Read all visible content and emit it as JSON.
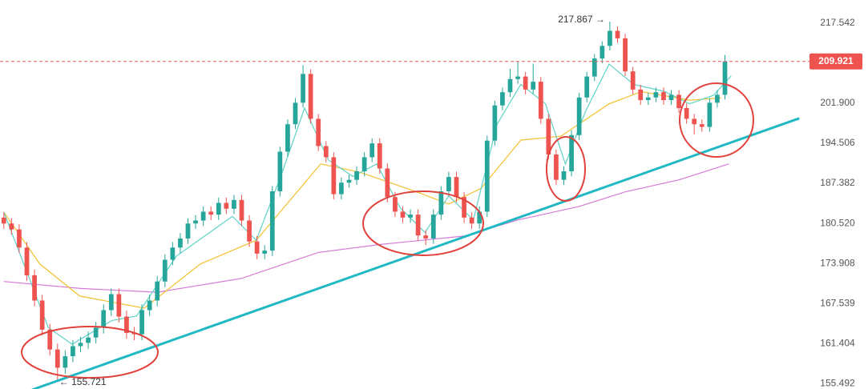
{
  "chart_data": {
    "type": "candlestick",
    "log_scale": true,
    "xlim": [
      -0.5,
      104.5
    ],
    "ylim": [
      154.7,
      222.3
    ],
    "yticks": [
      217.542,
      {
        "value": 201.9,
        "label": "201.900"
      },
      194.506,
      187.382,
      {
        "value": 180.52,
        "label": "180.520"
      },
      173.908,
      167.539,
      161.404,
      155.492
    ],
    "up_color": "#26a69a",
    "down_color": "#ef5350",
    "candles": {
      "open": [
        181.5,
        180.5,
        179.5,
        176.5,
        172,
        168,
        163.5,
        160.5,
        157.8,
        159.5,
        161,
        161.5,
        162.3,
        163.8,
        166.5,
        169,
        165.5,
        163,
        162.8,
        166.5,
        168,
        171,
        174.5,
        176.5,
        178,
        180.5,
        181,
        182.5,
        182,
        184,
        183,
        184.5,
        181,
        177.5,
        175.5,
        176,
        186,
        193,
        198,
        202,
        207.5,
        199,
        194,
        192,
        185.5,
        187.5,
        188,
        189.5,
        192,
        194.5,
        190,
        185,
        182.5,
        181.5,
        182,
        178.5,
        178,
        182,
        186,
        188.5,
        185,
        181.5,
        180.5,
        182.5,
        195,
        201.5,
        204,
        206.5,
        207,
        204.5,
        206,
        199,
        192.5,
        188,
        189.5,
        196,
        203,
        207,
        210.5,
        213,
        216,
        214.5,
        208,
        204.5,
        202.5,
        203,
        204,
        202.5,
        203.5,
        201,
        199,
        198,
        197.5,
        202,
        203.5
      ],
      "high": [
        182.4,
        181.4,
        180.4,
        177.4,
        172.9,
        168.9,
        164.4,
        161.4,
        160.4,
        161.9,
        162.4,
        163.2,
        164.7,
        167.4,
        169.9,
        169.9,
        166.4,
        163.9,
        167.4,
        168.9,
        171.9,
        175.4,
        177.4,
        178.9,
        181.4,
        181.9,
        183.4,
        183.4,
        184.9,
        184.9,
        185.4,
        185.4,
        181.9,
        178.4,
        176.9,
        186.9,
        193.9,
        198.9,
        202.9,
        209.2,
        208.4,
        199.9,
        194.9,
        192.9,
        188.4,
        188.9,
        190.4,
        192.9,
        195.4,
        195.4,
        190.9,
        185.9,
        183.4,
        182.9,
        182.9,
        179.4,
        182.9,
        186.9,
        189.4,
        189.4,
        185.9,
        182.4,
        183.4,
        195.9,
        202.4,
        204.9,
        208.5,
        210,
        207.9,
        209.5,
        206.9,
        199.9,
        193.4,
        190.4,
        196.9,
        203.9,
        207.9,
        211.4,
        213.9,
        217.867,
        216.9,
        215.4,
        208.9,
        205.4,
        203.9,
        204.9,
        204.9,
        204.4,
        204.4,
        201.9,
        199.9,
        198.9,
        202.9,
        204.4,
        211.2
      ],
      "low": [
        179.6,
        178.6,
        175.6,
        171.1,
        167.1,
        162.6,
        159.6,
        155.721,
        156.9,
        158.6,
        160.1,
        160.6,
        161.4,
        162.9,
        165.6,
        164.6,
        162.1,
        161.9,
        161.9,
        165.6,
        167.1,
        170.1,
        173.6,
        175.6,
        177.1,
        179.6,
        180.1,
        181.1,
        181.1,
        182.1,
        182.1,
        180.1,
        176.6,
        174.6,
        174.6,
        175.1,
        185.1,
        192.1,
        197.1,
        201.1,
        198.1,
        193.1,
        191.1,
        184.6,
        184.6,
        186.6,
        187.1,
        188.6,
        191.1,
        189.1,
        184.1,
        181.6,
        180.6,
        180.6,
        177.6,
        176.9,
        177.1,
        181.1,
        185.1,
        184.1,
        180.6,
        179.6,
        179.6,
        181.6,
        194.1,
        200.6,
        203.1,
        205.6,
        203.6,
        203.6,
        198.1,
        191.6,
        187.1,
        187.1,
        188.6,
        195.1,
        202.1,
        206.1,
        209.6,
        212.1,
        213.6,
        207.1,
        203.6,
        201.6,
        201.6,
        202.1,
        201.6,
        201.6,
        200.1,
        198.1,
        196.1,
        196.6,
        196.6,
        201.1,
        202.6
      ],
      "close": [
        180.5,
        179.5,
        176.5,
        172,
        168,
        163.5,
        160.5,
        157.8,
        159.5,
        161,
        161.5,
        162.3,
        163.8,
        166.5,
        169,
        165.5,
        163,
        162.8,
        166.5,
        168,
        171,
        174.5,
        176.5,
        178,
        180.5,
        181,
        182.5,
        182,
        184,
        183,
        184.5,
        181,
        177.5,
        175.5,
        176,
        186,
        193,
        198,
        202,
        207.5,
        199,
        194,
        192,
        185.5,
        187.5,
        188,
        189.5,
        192,
        194.5,
        190,
        185,
        182.5,
        181.5,
        182,
        178.5,
        178,
        182,
        186,
        188.5,
        185,
        181.5,
        180.5,
        182.5,
        195,
        201.5,
        204,
        206.5,
        207,
        204.5,
        206,
        199,
        192.5,
        188,
        189.5,
        196,
        203,
        207,
        210.5,
        213,
        216,
        214.5,
        208,
        204.5,
        202.5,
        203,
        204,
        202.5,
        203.5,
        201,
        199,
        198,
        197.5,
        202,
        203.5,
        209.921
      ]
    },
    "lines": [
      {
        "color": "#d67ad8",
        "x": [
          0,
          10,
          20,
          31,
          41,
          49,
          60,
          67,
          75,
          81,
          88,
          94.5
        ],
        "values": [
          171.0,
          169.9,
          169.3,
          171.5,
          175.7,
          177.0,
          178.4,
          181.1,
          183.4,
          185.9,
          188.0,
          190.8
        ]
      },
      {
        "color": "#f2c12e",
        "x": [
          0,
          4.7,
          9.9,
          18.3,
          25.6,
          32.9,
          41.3,
          46.5,
          53.8,
          58,
          62.2,
          67.4,
          72.6,
          78.9,
          83.1,
          89.4,
          93.5
        ],
        "values": [
          182.4,
          173.8,
          168.7,
          166.8,
          173.8,
          177.7,
          190.8,
          189.3,
          185.9,
          183.8,
          186.5,
          195.1,
          195.8,
          201.8,
          204.1,
          202.5,
          202.9
        ]
      },
      {
        "color": "#5fd3c6",
        "x": [
          0,
          2.6,
          5.8,
          8.9,
          14.1,
          17.3,
          22.5,
          29.8,
          32.9,
          36.1,
          39.2,
          42.3,
          45.5,
          48.6,
          51.7,
          54.9,
          58,
          61.2,
          64.3,
          67.4,
          70.6,
          73.2,
          75.8,
          78.9,
          82.1,
          86.2,
          89.4,
          92.5,
          94.8
        ],
        "values": [
          182.4,
          173.8,
          163.8,
          161.3,
          164.9,
          165.6,
          175.1,
          181.7,
          177.7,
          188.6,
          201.0,
          191.5,
          188.6,
          190.8,
          183.1,
          179.0,
          185.2,
          181.1,
          198.0,
          205.5,
          201.8,
          190.8,
          200.3,
          209.4,
          205.5,
          204.1,
          201.8,
          203.4,
          207.1
        ]
      }
    ],
    "trend_line": {
      "color": "#1fb8c3",
      "x": [
        3.7,
        103.7
      ],
      "values": [
        154.6,
        199.1
      ]
    },
    "last_price": 209.921,
    "last_price_color": "#ef5350",
    "high_label": {
      "value": 217.867,
      "label": "217.867 →"
    },
    "low_label": {
      "value": 155.721,
      "label": "← 155.721"
    }
  }
}
